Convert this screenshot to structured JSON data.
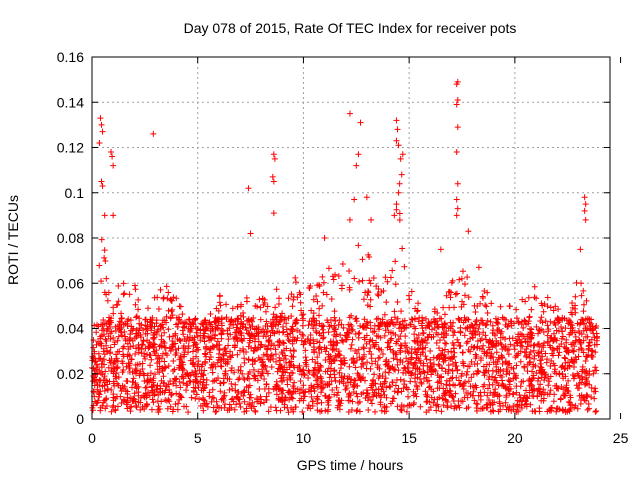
{
  "chart_data": {
    "type": "scatter",
    "title": "Day 078 of 2015, Rate Of TEC Index for receiver pots",
    "xlabel": "GPS time / hours",
    "ylabel": "ROTI / TECUs",
    "xlim": [
      0,
      24.5
    ],
    "ylim": [
      0,
      0.16
    ],
    "xticks": [
      0,
      5,
      10,
      15,
      20,
      25
    ],
    "xtick_labels": [
      "0",
      "5",
      "10",
      "15",
      "20",
      "25"
    ],
    "yticks": [
      0,
      0.02,
      0.04,
      0.06,
      0.08,
      0.1,
      0.12,
      0.14,
      0.16
    ],
    "ytick_labels": [
      "0",
      "0.02",
      "0.04",
      "0.06",
      "0.08",
      "0.1",
      "0.12",
      "0.14",
      "0.16"
    ],
    "grid": true,
    "marker": "+",
    "marker_color": "#ff0000",
    "baseline_band": {
      "x_range": [
        0.0,
        23.9
      ],
      "y_min": 0.003,
      "note": "dense cloud of points between about 0.004 and 0.045 across the full day"
    },
    "envelope": [
      [
        0.0,
        0.03
      ],
      [
        0.3,
        0.065
      ],
      [
        0.5,
        0.085
      ],
      [
        0.8,
        0.075
      ],
      [
        1.0,
        0.06
      ],
      [
        1.5,
        0.06
      ],
      [
        1.7,
        0.08
      ],
      [
        2.0,
        0.06
      ],
      [
        2.5,
        0.05
      ],
      [
        3.0,
        0.055
      ],
      [
        3.5,
        0.06
      ],
      [
        4.0,
        0.055
      ],
      [
        4.5,
        0.048
      ],
      [
        5.0,
        0.05
      ],
      [
        5.5,
        0.045
      ],
      [
        6.0,
        0.055
      ],
      [
        6.5,
        0.05
      ],
      [
        7.0,
        0.05
      ],
      [
        7.5,
        0.06
      ],
      [
        8.0,
        0.055
      ],
      [
        8.5,
        0.065
      ],
      [
        9.0,
        0.05
      ],
      [
        9.5,
        0.065
      ],
      [
        10.0,
        0.06
      ],
      [
        10.5,
        0.06
      ],
      [
        11.0,
        0.07
      ],
      [
        11.5,
        0.065
      ],
      [
        12.0,
        0.07
      ],
      [
        12.5,
        0.085
      ],
      [
        13.0,
        0.075
      ],
      [
        13.5,
        0.06
      ],
      [
        14.0,
        0.065
      ],
      [
        14.5,
        0.1
      ],
      [
        15.0,
        0.06
      ],
      [
        15.5,
        0.05
      ],
      [
        16.0,
        0.05
      ],
      [
        16.5,
        0.05
      ],
      [
        17.0,
        0.06
      ],
      [
        17.5,
        0.07
      ],
      [
        18.0,
        0.055
      ],
      [
        18.5,
        0.06
      ],
      [
        19.0,
        0.05
      ],
      [
        19.5,
        0.05
      ],
      [
        20.0,
        0.05
      ],
      [
        20.5,
        0.055
      ],
      [
        21.0,
        0.06
      ],
      [
        21.5,
        0.055
      ],
      [
        22.0,
        0.05
      ],
      [
        22.5,
        0.045
      ],
      [
        23.0,
        0.065
      ],
      [
        23.5,
        0.05
      ],
      [
        23.9,
        0.04
      ]
    ],
    "peaks": [
      {
        "x": 0.4,
        "y": 0.133
      },
      {
        "x": 0.45,
        "y": 0.13
      },
      {
        "x": 0.5,
        "y": 0.127
      },
      {
        "x": 0.35,
        "y": 0.122
      },
      {
        "x": 0.9,
        "y": 0.118
      },
      {
        "x": 0.95,
        "y": 0.116
      },
      {
        "x": 1.0,
        "y": 0.112
      },
      {
        "x": 0.45,
        "y": 0.105
      },
      {
        "x": 0.5,
        "y": 0.103
      },
      {
        "x": 0.6,
        "y": 0.09
      },
      {
        "x": 1.0,
        "y": 0.09
      },
      {
        "x": 2.9,
        "y": 0.126
      },
      {
        "x": 7.4,
        "y": 0.102
      },
      {
        "x": 7.5,
        "y": 0.082
      },
      {
        "x": 8.6,
        "y": 0.117
      },
      {
        "x": 8.65,
        "y": 0.115
      },
      {
        "x": 8.55,
        "y": 0.107
      },
      {
        "x": 8.6,
        "y": 0.105
      },
      {
        "x": 8.6,
        "y": 0.091
      },
      {
        "x": 12.2,
        "y": 0.135
      },
      {
        "x": 12.7,
        "y": 0.131
      },
      {
        "x": 12.6,
        "y": 0.117
      },
      {
        "x": 12.5,
        "y": 0.112
      },
      {
        "x": 12.4,
        "y": 0.097
      },
      {
        "x": 12.2,
        "y": 0.088
      },
      {
        "x": 13.0,
        "y": 0.098
      },
      {
        "x": 13.2,
        "y": 0.088
      },
      {
        "x": 14.4,
        "y": 0.132
      },
      {
        "x": 14.45,
        "y": 0.128
      },
      {
        "x": 14.4,
        "y": 0.123
      },
      {
        "x": 14.5,
        "y": 0.121
      },
      {
        "x": 14.6,
        "y": 0.115
      },
      {
        "x": 14.7,
        "y": 0.117
      },
      {
        "x": 14.65,
        "y": 0.108
      },
      {
        "x": 14.55,
        "y": 0.104
      },
      {
        "x": 14.5,
        "y": 0.1
      },
      {
        "x": 14.4,
        "y": 0.095
      },
      {
        "x": 14.3,
        "y": 0.09
      },
      {
        "x": 17.3,
        "y": 0.149
      },
      {
        "x": 17.25,
        "y": 0.148
      },
      {
        "x": 17.3,
        "y": 0.141
      },
      {
        "x": 17.25,
        "y": 0.139
      },
      {
        "x": 17.3,
        "y": 0.129
      },
      {
        "x": 17.25,
        "y": 0.118
      },
      {
        "x": 17.3,
        "y": 0.104
      },
      {
        "x": 17.25,
        "y": 0.097
      },
      {
        "x": 17.3,
        "y": 0.093
      },
      {
        "x": 17.25,
        "y": 0.09
      },
      {
        "x": 17.8,
        "y": 0.083
      },
      {
        "x": 23.3,
        "y": 0.098
      },
      {
        "x": 23.35,
        "y": 0.095
      },
      {
        "x": 23.3,
        "y": 0.092
      },
      {
        "x": 23.35,
        "y": 0.088
      },
      {
        "x": 23.1,
        "y": 0.075
      },
      {
        "x": 11.0,
        "y": 0.08
      },
      {
        "x": 16.5,
        "y": 0.075
      },
      {
        "x": 18.3,
        "y": 0.067
      }
    ]
  }
}
